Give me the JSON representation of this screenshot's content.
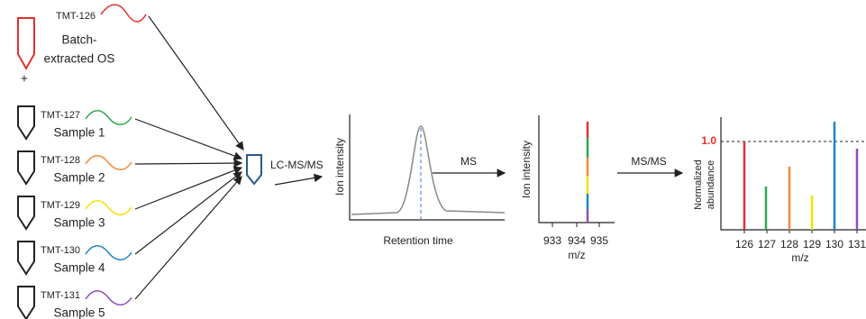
{
  "reference": {
    "tag": "TMT-126",
    "label_lines": [
      "Batch-",
      "extracted OS"
    ]
  },
  "plus": "+",
  "samples": [
    {
      "tag": "TMT-127",
      "label": "Sample 1"
    },
    {
      "tag": "TMT-128",
      "label": "Sample 2"
    },
    {
      "tag": "TMT-129",
      "label": "Sample 3"
    },
    {
      "tag": "TMT-130",
      "label": "Sample 4"
    },
    {
      "tag": "TMT-131",
      "label": "Sample 5"
    }
  ],
  "step1": "LC-MS/MS",
  "chromatogram": {
    "y_label": "Ion intensity",
    "x_label": "Retention time"
  },
  "step2": "MS",
  "ms1": {
    "y_label": "Ion intensity",
    "x_ticks": [
      "933",
      "934",
      "935"
    ],
    "x_label": "m/z"
  },
  "step3": "MS/MS",
  "ms2": {
    "y_label_lines": [
      "Normalized",
      "abundance"
    ],
    "ref_label": "1.0",
    "x_ticks": [
      "126",
      "127",
      "128",
      "129",
      "130",
      "131"
    ],
    "x_label": "m/z"
  }
}
